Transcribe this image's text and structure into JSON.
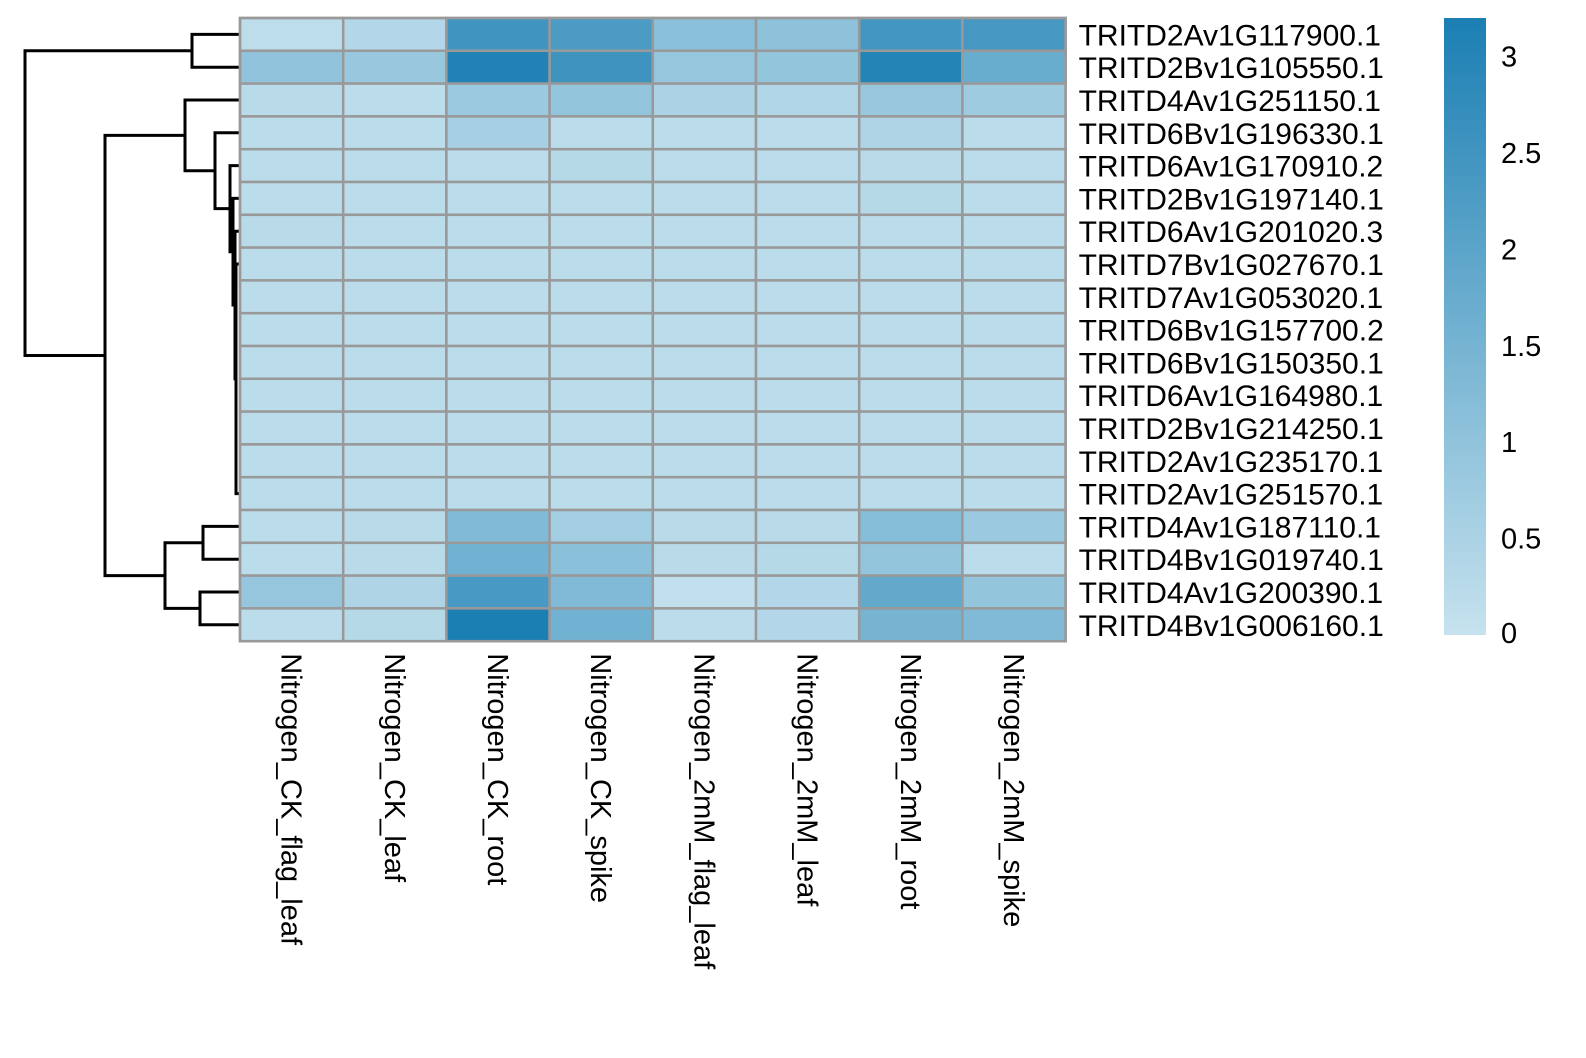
{
  "chart_data": {
    "type": "heatmap",
    "title": "",
    "xlabel": "",
    "ylabel": "",
    "columns": [
      "Nitrogen_CK_flag_leaf",
      "Nitrogen_CK_leaf",
      "Nitrogen_CK_root",
      "Nitrogen_CK_spike",
      "Nitrogen_2mM_flag_leaf",
      "Nitrogen_2mM_leaf",
      "Nitrogen_2mM_root",
      "Nitrogen_2mM_spike"
    ],
    "rows": [
      "TRITD2Av1G117900.1",
      "TRITD2Bv1G105550.1",
      "TRITD4Av1G251150.1",
      "TRITD6Bv1G196330.1",
      "TRITD6Av1G170910.2",
      "TRITD2Bv1G197140.1",
      "TRITD6Av1G201020.3",
      "TRITD7Bv1G027670.1",
      "TRITD7Av1G053020.1",
      "TRITD6Bv1G157700.2",
      "TRITD6Bv1G150350.1",
      "TRITD6Av1G164980.1",
      "TRITD2Bv1G214250.1",
      "TRITD2Av1G235170.1",
      "TRITD2Av1G251570.1",
      "TRITD4Av1G187110.1",
      "TRITD4Bv1G019740.1",
      "TRITD4Av1G200390.1",
      "TRITD4Bv1G006160.1"
    ],
    "values": [
      [
        0.15,
        0.35,
        2.5,
        2.3,
        1.1,
        1.05,
        2.45,
        2.4
      ],
      [
        1.0,
        0.85,
        3.1,
        2.55,
        0.9,
        0.95,
        3.05,
        1.75
      ],
      [
        0.25,
        0.2,
        0.8,
        0.95,
        0.5,
        0.4,
        0.85,
        0.75
      ],
      [
        0.2,
        0.2,
        0.6,
        0.2,
        0.2,
        0.2,
        0.45,
        0.2
      ],
      [
        0.2,
        0.2,
        0.2,
        0.3,
        0.2,
        0.2,
        0.25,
        0.2
      ],
      [
        0.2,
        0.2,
        0.2,
        0.2,
        0.2,
        0.2,
        0.3,
        0.2
      ],
      [
        0.25,
        0.2,
        0.2,
        0.2,
        0.2,
        0.2,
        0.2,
        0.2
      ],
      [
        0.2,
        0.2,
        0.2,
        0.2,
        0.2,
        0.2,
        0.2,
        0.2
      ],
      [
        0.2,
        0.2,
        0.2,
        0.2,
        0.2,
        0.2,
        0.2,
        0.2
      ],
      [
        0.2,
        0.2,
        0.2,
        0.2,
        0.2,
        0.2,
        0.2,
        0.2
      ],
      [
        0.2,
        0.2,
        0.2,
        0.2,
        0.2,
        0.2,
        0.2,
        0.2
      ],
      [
        0.2,
        0.2,
        0.2,
        0.2,
        0.2,
        0.2,
        0.2,
        0.2
      ],
      [
        0.2,
        0.2,
        0.2,
        0.2,
        0.2,
        0.2,
        0.2,
        0.2
      ],
      [
        0.2,
        0.2,
        0.2,
        0.2,
        0.2,
        0.2,
        0.2,
        0.2
      ],
      [
        0.2,
        0.2,
        0.2,
        0.2,
        0.2,
        0.2,
        0.2,
        0.2
      ],
      [
        0.2,
        0.25,
        1.3,
        0.65,
        0.25,
        0.25,
        1.2,
        0.8
      ],
      [
        0.2,
        0.25,
        1.6,
        1.1,
        0.25,
        0.3,
        0.95,
        0.2
      ],
      [
        0.9,
        0.45,
        2.35,
        1.3,
        0.1,
        0.35,
        1.85,
        0.95
      ],
      [
        0.2,
        0.3,
        3.2,
        1.6,
        0.2,
        0.35,
        1.5,
        1.3
      ]
    ],
    "value_range": [
      0,
      3.2
    ],
    "colorbar": {
      "ticks": [
        0,
        0.5,
        1,
        1.5,
        2,
        2.5,
        3
      ],
      "tick_labels": [
        "0",
        "0.5",
        "1",
        "1.5",
        "2",
        "2.5",
        "3"
      ],
      "color_low": "#c6e2ee",
      "color_high": "#1b7fb3"
    },
    "cell_border_color": "#999999",
    "row_dendrogram": true,
    "col_dendrogram": false
  }
}
